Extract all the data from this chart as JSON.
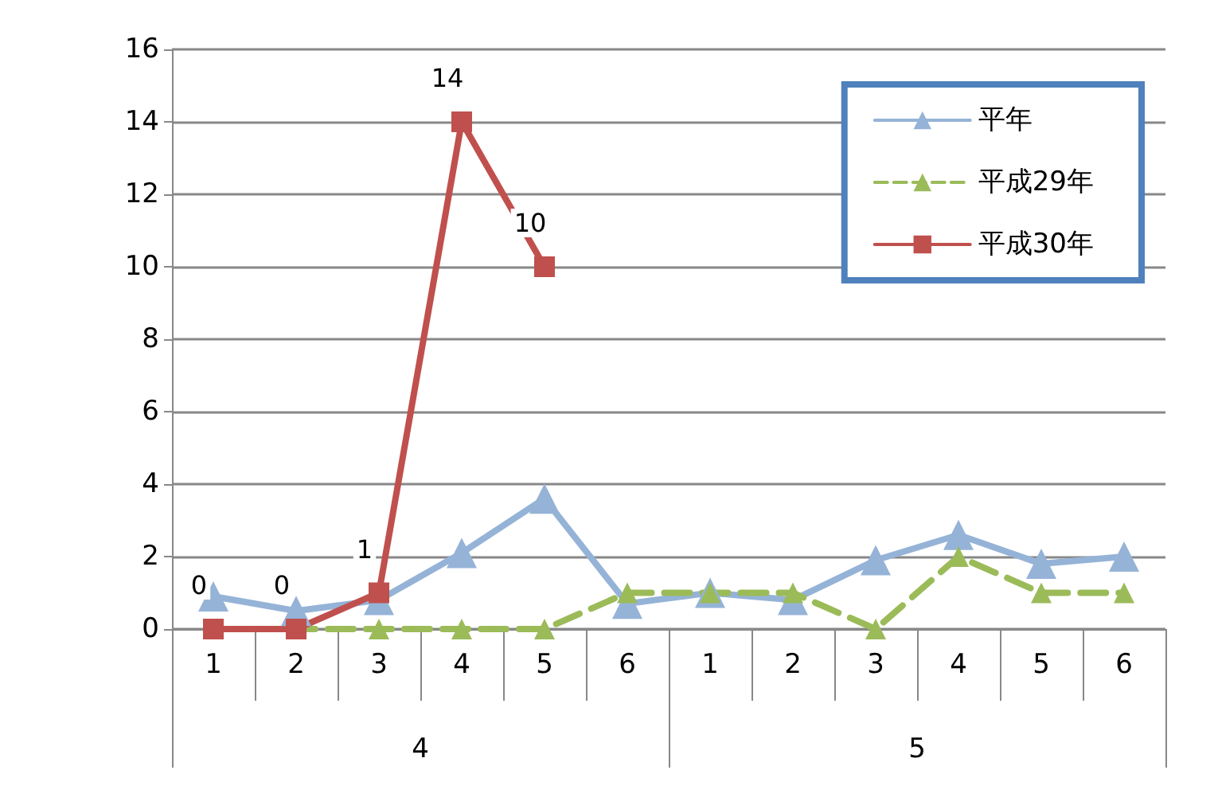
{
  "chart_data": {
    "type": "line",
    "categories": [
      "1",
      "2",
      "3",
      "4",
      "5",
      "6",
      "1",
      "2",
      "3",
      "4",
      "5",
      "6"
    ],
    "annotations": [
      "4",
      "5"
    ],
    "series": [
      {
        "name": "平年",
        "color": "#95b3d7",
        "marker": "triangle",
        "line_style": "solid",
        "values": [
          0.9,
          0.5,
          0.8,
          2.1,
          3.6,
          0.7,
          1.0,
          0.8,
          1.9,
          2.6,
          1.8,
          2.0
        ]
      },
      {
        "name": "平成29年",
        "color": "#9bbb59",
        "marker": "triangle",
        "line_style": "dashed",
        "values": [
          0,
          0,
          0,
          0,
          0,
          1,
          1,
          1,
          0,
          2,
          1,
          1
        ]
      },
      {
        "name": "平成30年",
        "color": "#c0504d",
        "marker": "square",
        "line_style": "solid",
        "values": [
          0,
          0,
          1,
          14,
          10,
          null,
          null,
          null,
          null,
          null,
          null,
          null
        ],
        "value_labels": [
          "0",
          "0",
          "1",
          "14",
          "10",
          null,
          null,
          null,
          null,
          null,
          null,
          null
        ]
      }
    ],
    "ylim": [
      0,
      16
    ],
    "yticks": [
      0,
      2,
      4,
      6,
      8,
      10,
      12,
      14,
      16
    ],
    "grid": "y",
    "legend": "top right"
  }
}
